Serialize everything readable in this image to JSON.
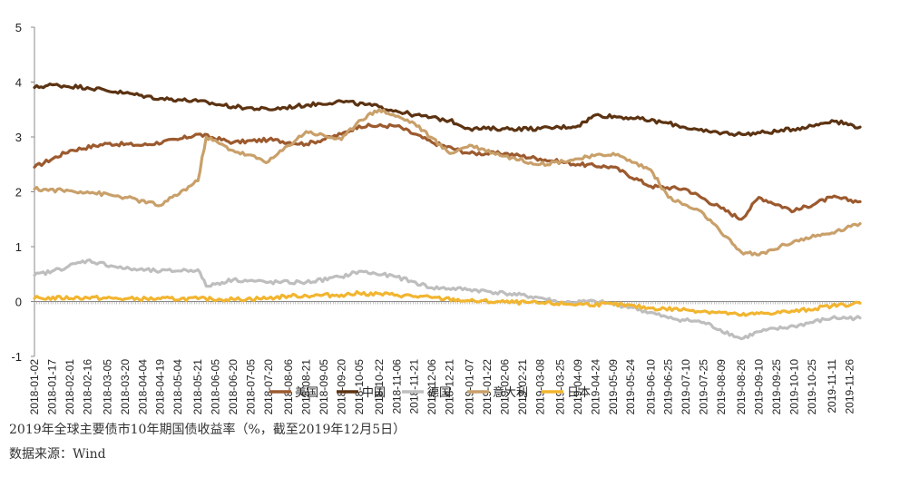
{
  "chart_data": {
    "type": "line",
    "ylim": [
      -1,
      5
    ],
    "yticks": [
      -1,
      0,
      1,
      2,
      3,
      4,
      5
    ],
    "x_start": "2018-01-02",
    "x_end": "2019-12-05",
    "xtick_labels": [
      "2018-01-02",
      "2018-01-17",
      "2018-02-01",
      "2018-02-16",
      "2018-03-05",
      "2018-03-20",
      "2018-04-04",
      "2018-04-19",
      "2018-05-04",
      "2018-05-21",
      "2018-06-05",
      "2018-06-20",
      "2018-07-05",
      "2018-07-20",
      "2018-08-06",
      "2018-08-21",
      "2018-09-05",
      "2018-09-20",
      "2018-10-05",
      "2018-10-22",
      "2018-11-06",
      "2018-11-21",
      "2018-12-06",
      "2018-12-21",
      "2019-01-07",
      "2019-01-22",
      "2019-02-06",
      "2019-02-21",
      "2019-03-08",
      "2019-03-25",
      "2019-04-09",
      "2019-04-24",
      "2019-05-09",
      "2019-05-24",
      "2019-06-10",
      "2019-06-25",
      "2019-07-10",
      "2019-07-25",
      "2019-08-09",
      "2019-08-26",
      "2019-09-10",
      "2019-09-25",
      "2019-10-10",
      "2019-10-25",
      "2019-11-11",
      "2019-11-26"
    ],
    "legend_position": "bottom",
    "series": [
      {
        "name": "美国",
        "color": "#9C5A2E",
        "x": [
          "2018-01-02",
          "2018-02-01",
          "2018-03-05",
          "2018-04-04",
          "2018-05-04",
          "2018-05-21",
          "2018-06-20",
          "2018-07-20",
          "2018-08-21",
          "2018-09-20",
          "2018-10-05",
          "2018-11-06",
          "2018-12-06",
          "2019-01-07",
          "2019-02-06",
          "2019-03-08",
          "2019-04-09",
          "2019-05-09",
          "2019-06-10",
          "2019-07-10",
          "2019-08-09",
          "2019-08-26",
          "2019-09-10",
          "2019-10-10",
          "2019-11-11",
          "2019-12-05"
        ],
        "values": [
          2.45,
          2.75,
          2.88,
          2.85,
          2.95,
          3.05,
          2.9,
          2.95,
          2.87,
          3.05,
          3.2,
          3.2,
          2.9,
          2.7,
          2.7,
          2.6,
          2.5,
          2.45,
          2.1,
          2.05,
          1.7,
          1.5,
          1.9,
          1.65,
          1.9,
          1.82
        ]
      },
      {
        "name": "中国",
        "color": "#5C3312",
        "x": [
          "2018-01-02",
          "2018-01-17",
          "2018-02-16",
          "2018-03-20",
          "2018-04-19",
          "2018-05-04",
          "2018-05-21",
          "2018-06-20",
          "2018-07-20",
          "2018-08-21",
          "2018-09-20",
          "2018-10-22",
          "2018-11-21",
          "2018-12-21",
          "2019-01-07",
          "2019-02-06",
          "2019-03-08",
          "2019-04-09",
          "2019-04-24",
          "2019-05-24",
          "2019-06-25",
          "2019-07-25",
          "2019-08-26",
          "2019-09-25",
          "2019-10-25",
          "2019-11-11",
          "2019-12-05"
        ],
        "values": [
          3.9,
          3.95,
          3.9,
          3.8,
          3.7,
          3.68,
          3.65,
          3.55,
          3.5,
          3.58,
          3.65,
          3.55,
          3.4,
          3.3,
          3.15,
          3.15,
          3.15,
          3.2,
          3.4,
          3.35,
          3.25,
          3.1,
          3.05,
          3.1,
          3.2,
          3.3,
          3.18
        ]
      },
      {
        "name": "德国",
        "color": "#BEBEBE",
        "x": [
          "2018-01-02",
          "2018-01-17",
          "2018-02-16",
          "2018-03-20",
          "2018-04-19",
          "2018-05-21",
          "2018-05-28",
          "2018-06-20",
          "2018-07-20",
          "2018-08-21",
          "2018-09-20",
          "2018-10-05",
          "2018-11-06",
          "2018-12-06",
          "2019-01-07",
          "2019-02-06",
          "2019-03-08",
          "2019-03-25",
          "2019-04-24",
          "2019-05-24",
          "2019-06-25",
          "2019-07-25",
          "2019-08-26",
          "2019-09-10",
          "2019-10-10",
          "2019-11-11",
          "2019-12-05"
        ],
        "values": [
          0.48,
          0.55,
          0.75,
          0.6,
          0.55,
          0.58,
          0.28,
          0.4,
          0.35,
          0.35,
          0.45,
          0.55,
          0.45,
          0.25,
          0.22,
          0.15,
          0.07,
          -0.02,
          0.0,
          -0.1,
          -0.3,
          -0.38,
          -0.68,
          -0.55,
          -0.45,
          -0.3,
          -0.3
        ]
      },
      {
        "name": "意大利",
        "color": "#C9A06A",
        "x": [
          "2018-01-02",
          "2018-02-16",
          "2018-03-20",
          "2018-04-19",
          "2018-05-21",
          "2018-05-28",
          "2018-06-20",
          "2018-07-20",
          "2018-08-21",
          "2018-09-20",
          "2018-10-05",
          "2018-10-22",
          "2018-11-21",
          "2018-12-21",
          "2019-01-07",
          "2019-02-06",
          "2019-03-08",
          "2019-04-09",
          "2019-05-09",
          "2019-06-10",
          "2019-06-25",
          "2019-07-25",
          "2019-08-09",
          "2019-08-26",
          "2019-09-10",
          "2019-10-10",
          "2019-11-11",
          "2019-12-05"
        ],
        "values": [
          2.05,
          2.0,
          1.9,
          1.75,
          2.2,
          3.0,
          2.75,
          2.55,
          3.1,
          2.95,
          3.3,
          3.5,
          3.25,
          2.7,
          2.85,
          2.65,
          2.5,
          2.6,
          2.7,
          2.4,
          1.9,
          1.6,
          1.25,
          0.9,
          0.85,
          1.1,
          1.25,
          1.42
        ]
      },
      {
        "name": "日本",
        "color": "#F2B530",
        "x": [
          "2018-01-02",
          "2018-02-16",
          "2018-03-20",
          "2018-04-19",
          "2018-05-21",
          "2018-06-20",
          "2018-07-20",
          "2018-08-06",
          "2018-09-20",
          "2018-10-05",
          "2018-11-06",
          "2018-12-06",
          "2019-01-07",
          "2019-02-06",
          "2019-03-08",
          "2019-04-09",
          "2019-05-09",
          "2019-06-10",
          "2019-07-10",
          "2019-08-09",
          "2019-08-26",
          "2019-09-10",
          "2019-10-10",
          "2019-11-11",
          "2019-12-05"
        ],
        "values": [
          0.06,
          0.07,
          0.05,
          0.05,
          0.05,
          0.04,
          0.06,
          0.1,
          0.12,
          0.15,
          0.12,
          0.07,
          0.01,
          -0.01,
          -0.03,
          -0.05,
          -0.05,
          -0.12,
          -0.15,
          -0.2,
          -0.25,
          -0.22,
          -0.18,
          -0.08,
          -0.03
        ]
      }
    ]
  },
  "caption": {
    "title": "2019年全球主要债市10年期国债收益率（%，截至2019年12月5日）",
    "source": "数据来源：Wind"
  }
}
